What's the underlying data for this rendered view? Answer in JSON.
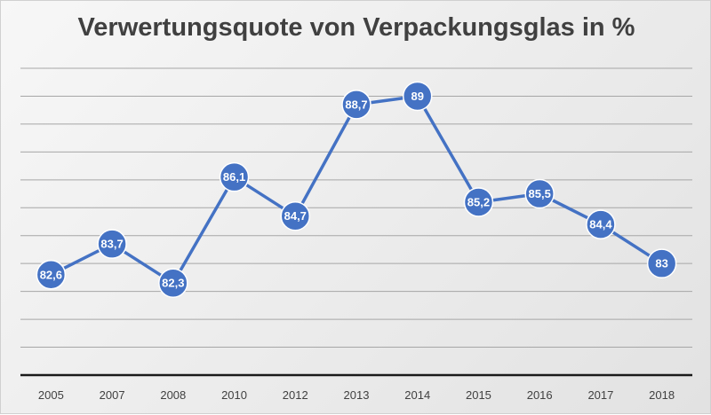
{
  "chart_data": {
    "type": "line",
    "title": "Verwertungsquote von Verpackungsglas in %",
    "xlabel": "",
    "ylabel": "",
    "categories": [
      "2005",
      "2007",
      "2008",
      "2010",
      "2012",
      "2013",
      "2014",
      "2015",
      "2016",
      "2017",
      "2018"
    ],
    "series": [
      {
        "values": [
          82.6,
          83.7,
          82.3,
          86.1,
          84.7,
          88.7,
          89,
          85.2,
          85.5,
          84.4,
          83
        ],
        "labels": [
          "82,6",
          "83,7",
          "82,3",
          "86,1",
          "84,7",
          "88,7",
          "89",
          "85,2",
          "85,5",
          "84,4",
          "83"
        ]
      }
    ],
    "ylim": [
      79,
      90
    ],
    "y_axis_labels_visible": false,
    "grid": true,
    "legend": "none",
    "colors": {
      "series": "#4472c4",
      "marker_outline": "#ffffff",
      "gridline": "#a6a6a6",
      "axis": "#1a1a1a"
    }
  }
}
